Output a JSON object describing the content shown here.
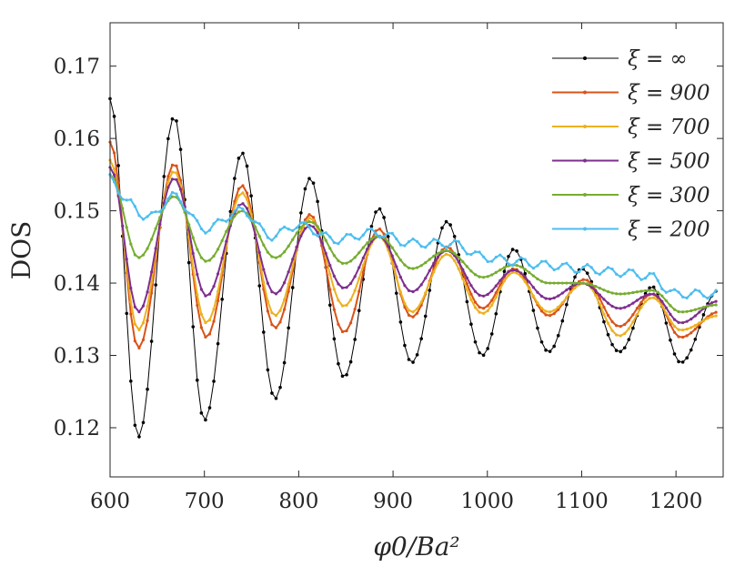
{
  "chart_data": {
    "type": "line",
    "title": "",
    "xlabel": "φ0/Ba²",
    "ylabel": "DOS",
    "xlim": [
      600,
      1250
    ],
    "ylim": [
      0.1132,
      0.176
    ],
    "xticks": [
      600,
      700,
      800,
      900,
      1000,
      1100,
      1200
    ],
    "xtick_labels": [
      "600",
      "700",
      "800",
      "900",
      "1000",
      "1100",
      "1200"
    ],
    "yticks": [
      0.12,
      0.13,
      0.14,
      0.15,
      0.16,
      0.17
    ],
    "ytick_labels": [
      "0.12",
      "0.13",
      "0.14",
      "0.15",
      "0.16",
      "0.17"
    ],
    "grid": false,
    "legend_position": "top-right",
    "sample_step": 4.4,
    "series": [
      {
        "name": "ξ = ∞",
        "color": "#000000",
        "points": [
          [
            600,
            0.1655
          ],
          [
            630,
            0.1187
          ],
          [
            668,
            0.163
          ],
          [
            700,
            0.121
          ],
          [
            740,
            0.158
          ],
          [
            775,
            0.124
          ],
          [
            812,
            0.1545
          ],
          [
            848,
            0.127
          ],
          [
            885,
            0.1503
          ],
          [
            920,
            0.129
          ],
          [
            957,
            0.1485
          ],
          [
            995,
            0.13
          ],
          [
            1028,
            0.1447
          ],
          [
            1065,
            0.1305
          ],
          [
            1100,
            0.142
          ],
          [
            1140,
            0.1305
          ],
          [
            1175,
            0.1395
          ],
          [
            1205,
            0.129
          ],
          [
            1245,
            0.139
          ]
        ]
      },
      {
        "name": "ξ = 900",
        "color": "#d95319",
        "points": [
          [
            600,
            0.1595
          ],
          [
            630,
            0.131
          ],
          [
            668,
            0.1565
          ],
          [
            702,
            0.1325
          ],
          [
            740,
            0.1535
          ],
          [
            775,
            0.1338
          ],
          [
            812,
            0.1495
          ],
          [
            848,
            0.1332
          ],
          [
            885,
            0.1475
          ],
          [
            920,
            0.1353
          ],
          [
            957,
            0.145
          ],
          [
            995,
            0.1365
          ],
          [
            1028,
            0.142
          ],
          [
            1065,
            0.1355
          ],
          [
            1103,
            0.1405
          ],
          [
            1140,
            0.134
          ],
          [
            1175,
            0.1385
          ],
          [
            1205,
            0.1325
          ],
          [
            1245,
            0.136
          ]
        ]
      },
      {
        "name": "ξ = 700",
        "color": "#edb120",
        "points": [
          [
            600,
            0.157
          ],
          [
            630,
            0.1335
          ],
          [
            668,
            0.1555
          ],
          [
            702,
            0.1345
          ],
          [
            740,
            0.1525
          ],
          [
            775,
            0.1355
          ],
          [
            812,
            0.149
          ],
          [
            848,
            0.1368
          ],
          [
            885,
            0.1465
          ],
          [
            920,
            0.136
          ],
          [
            957,
            0.144
          ],
          [
            995,
            0.1358
          ],
          [
            1028,
            0.1415
          ],
          [
            1065,
            0.136
          ],
          [
            1103,
            0.14
          ],
          [
            1140,
            0.1327
          ],
          [
            1175,
            0.138
          ],
          [
            1205,
            0.1335
          ],
          [
            1245,
            0.1355
          ]
        ]
      },
      {
        "name": "ξ = 500",
        "color": "#7e2f8e",
        "points": [
          [
            600,
            0.156
          ],
          [
            630,
            0.136
          ],
          [
            668,
            0.1545
          ],
          [
            702,
            0.1382
          ],
          [
            740,
            0.151
          ],
          [
            775,
            0.1385
          ],
          [
            812,
            0.148
          ],
          [
            848,
            0.1393
          ],
          [
            885,
            0.1465
          ],
          [
            920,
            0.1388
          ],
          [
            957,
            0.1445
          ],
          [
            995,
            0.1382
          ],
          [
            1028,
            0.1418
          ],
          [
            1065,
            0.1378
          ],
          [
            1100,
            0.14
          ],
          [
            1140,
            0.1365
          ],
          [
            1175,
            0.1385
          ],
          [
            1205,
            0.1345
          ],
          [
            1245,
            0.1375
          ]
        ]
      },
      {
        "name": "ξ = 300",
        "color": "#77ac30",
        "points": [
          [
            600,
            0.155
          ],
          [
            630,
            0.1435
          ],
          [
            668,
            0.152
          ],
          [
            702,
            0.143
          ],
          [
            740,
            0.15
          ],
          [
            775,
            0.1435
          ],
          [
            812,
            0.1485
          ],
          [
            848,
            0.1427
          ],
          [
            885,
            0.1465
          ],
          [
            920,
            0.142
          ],
          [
            957,
            0.1445
          ],
          [
            995,
            0.1408
          ],
          [
            1028,
            0.1425
          ],
          [
            1065,
            0.14
          ],
          [
            1100,
            0.14
          ],
          [
            1140,
            0.1385
          ],
          [
            1175,
            0.139
          ],
          [
            1205,
            0.136
          ],
          [
            1245,
            0.137
          ]
        ]
      },
      {
        "name": "ξ = 200",
        "color": "#4dbeee",
        "points": [
          [
            600,
            0.1545
          ],
          [
            620,
            0.151
          ],
          [
            640,
            0.149
          ],
          [
            668,
            0.152
          ],
          [
            700,
            0.1475
          ],
          [
            740,
            0.15
          ],
          [
            770,
            0.1465
          ],
          [
            800,
            0.148
          ],
          [
            840,
            0.146
          ],
          [
            880,
            0.147
          ],
          [
            920,
            0.1455
          ],
          [
            960,
            0.1455
          ],
          [
            1000,
            0.1435
          ],
          [
            1030,
            0.143
          ],
          [
            1060,
            0.1425
          ],
          [
            1100,
            0.142
          ],
          [
            1140,
            0.1415
          ],
          [
            1170,
            0.141
          ],
          [
            1200,
            0.1385
          ],
          [
            1245,
            0.1385
          ]
        ]
      }
    ]
  }
}
